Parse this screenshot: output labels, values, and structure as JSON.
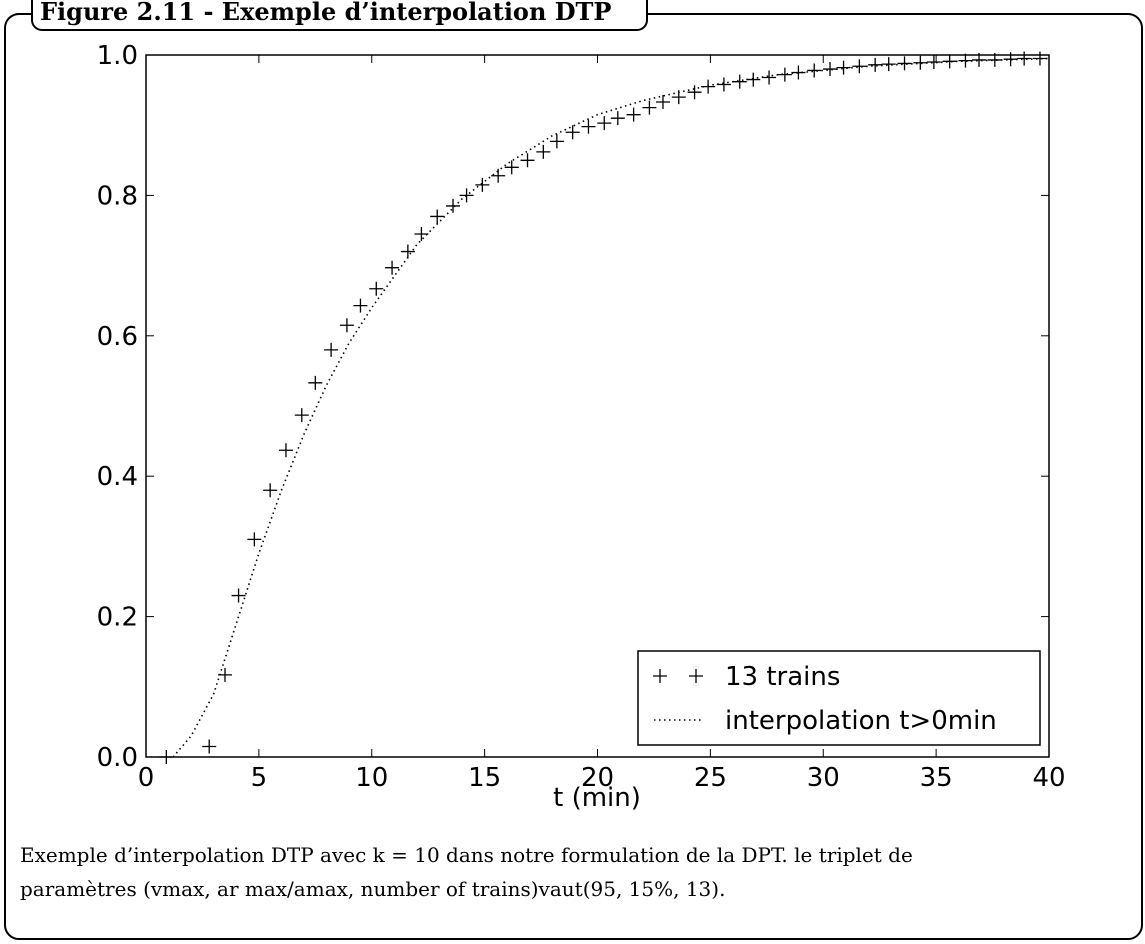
{
  "figure": {
    "title": "Figure 2.11 - Exemple d’interpolation DTP",
    "caption": [
      "Exemple d’interpolation DTP avec k = 10 dans notre formulation de la DPT. le triplet de",
      "paramètres (vmax, ar max/amax, number of trains)vaut(95, 15%, 13)."
    ]
  },
  "chart_data": {
    "type": "scatter",
    "xlabel": "t (min)",
    "xlim": [
      0,
      40
    ],
    "xticks": [
      0,
      5,
      10,
      15,
      20,
      25,
      30,
      35,
      40
    ],
    "ylim": [
      0,
      1
    ],
    "yticks": [
      {
        "value": 0,
        "label": "0.0"
      },
      {
        "value": 0.2,
        "label": "0.2"
      },
      {
        "value": 0.4,
        "label": "0.4"
      },
      {
        "value": 0.6,
        "label": "0.6"
      },
      {
        "value": 0.8,
        "label": "0.8"
      },
      {
        "value": 1,
        "label": "1.0"
      }
    ],
    "grid": false,
    "legend": "lower right",
    "series": [
      {
        "name": "13 trains",
        "color": "#000000",
        "marker": "+",
        "x": [
          0.9,
          2.8,
          3.5,
          4.1,
          4.8,
          5.5,
          6.2,
          6.9,
          7.5,
          8.2,
          8.9,
          9.5,
          10.2,
          10.9,
          11.6,
          12.2,
          12.9,
          13.6,
          14.2,
          14.9,
          15.6,
          16.2,
          16.9,
          17.6,
          18.2,
          18.9,
          19.6,
          20.3,
          20.9,
          21.6,
          22.3,
          22.9,
          23.6,
          24.3,
          24.9,
          25.6,
          26.3,
          26.9,
          27.6,
          28.3,
          28.9,
          29.6,
          30.3,
          30.9,
          31.6,
          32.3,
          32.9,
          33.6,
          34.3,
          34.9,
          35.6,
          36.3,
          36.9,
          37.6,
          38.3,
          38.9,
          39.6
        ],
        "values": [
          0.0,
          0.015,
          0.117,
          0.23,
          0.31,
          0.38,
          0.437,
          0.487,
          0.533,
          0.58,
          0.615,
          0.643,
          0.667,
          0.697,
          0.72,
          0.745,
          0.77,
          0.785,
          0.8,
          0.815,
          0.828,
          0.84,
          0.85,
          0.862,
          0.877,
          0.89,
          0.898,
          0.903,
          0.91,
          0.915,
          0.925,
          0.933,
          0.94,
          0.947,
          0.955,
          0.958,
          0.962,
          0.965,
          0.968,
          0.972,
          0.975,
          0.978,
          0.98,
          0.982,
          0.984,
          0.986,
          0.987,
          0.988,
          0.989,
          0.99,
          0.991,
          0.992,
          0.993,
          0.993,
          0.994,
          0.995,
          0.995
        ]
      },
      {
        "name": "interpolation t>0min",
        "color": "#000000",
        "line": "dotted",
        "x": [
          1.2,
          2,
          3,
          4,
          5,
          6,
          7,
          8,
          9,
          10,
          12,
          14,
          16,
          18,
          20,
          22,
          25,
          28,
          32,
          36,
          40
        ],
        "values": [
          0,
          0.03,
          0.09,
          0.19,
          0.29,
          0.38,
          0.46,
          0.53,
          0.59,
          0.64,
          0.73,
          0.795,
          0.845,
          0.885,
          0.915,
          0.935,
          0.957,
          0.972,
          0.984,
          0.991,
          0.995
        ]
      }
    ]
  }
}
